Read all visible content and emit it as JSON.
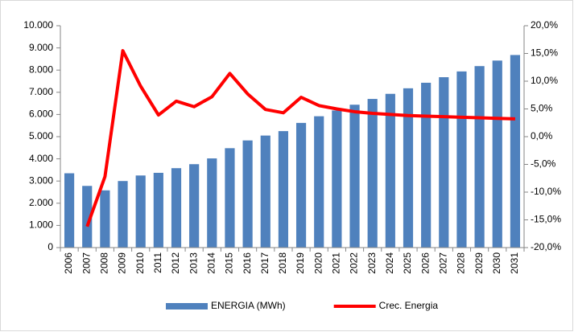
{
  "chart_data": {
    "type": "bar_line",
    "categories": [
      "2006",
      "2007",
      "2008",
      "2009",
      "2010",
      "2011",
      "2012",
      "2013",
      "2014",
      "2015",
      "2016",
      "2017",
      "2018",
      "2019",
      "2020",
      "2021",
      "2022",
      "2023",
      "2024",
      "2025",
      "2026",
      "2027",
      "2028",
      "2029",
      "2030",
      "2031"
    ],
    "series": [
      {
        "name": "ENERGIA (MWh)",
        "color": "#4f81bd",
        "type": "bar",
        "values": [
          3350,
          2780,
          2580,
          3000,
          3250,
          3370,
          3580,
          3760,
          4020,
          4480,
          4830,
          5050,
          5250,
          5620,
          5920,
          6180,
          6440,
          6700,
          6930,
          7180,
          7430,
          7680,
          7940,
          8180,
          8430,
          8680
        ]
      },
      {
        "name": "Crec. Energia",
        "color": "#ff0000",
        "type": "line",
        "axis": "y2",
        "values": [
          null,
          -16.2,
          -7.2,
          15.5,
          9.1,
          3.9,
          6.4,
          5.4,
          7.2,
          11.4,
          7.7,
          4.9,
          4.3,
          7.1,
          5.6,
          5.0,
          4.5,
          4.2,
          4.0,
          3.8,
          3.7,
          3.6,
          3.5,
          3.4,
          3.3,
          3.2
        ]
      }
    ],
    "ylim": [
      0,
      10000
    ],
    "yticks": [
      0,
      {
        "value": 1000,
        "label": "1.000"
      },
      {
        "value": 2000,
        "label": "2.000"
      },
      {
        "value": 3000,
        "label": "3.000"
      },
      {
        "value": 4000,
        "label": "4.000"
      },
      {
        "value": 5000,
        "label": "5.000"
      },
      {
        "value": 6000,
        "label": "6.000"
      },
      {
        "value": 7000,
        "label": "7.000"
      },
      {
        "value": 8000,
        "label": "8.000"
      },
      {
        "value": 9000,
        "label": "9.000"
      },
      {
        "value": 10000,
        "label": "10.000"
      }
    ],
    "y2lim": [
      -20,
      20
    ],
    "y2ticks": [
      {
        "value": -20,
        "label": "-20,0%"
      },
      {
        "value": -15,
        "label": "-15,0%"
      },
      {
        "value": -10,
        "label": "-10,0%"
      },
      {
        "value": -5,
        "label": "-5,0%"
      },
      {
        "value": 0,
        "label": "0,0%"
      },
      {
        "value": 5,
        "label": "5,0%"
      },
      {
        "value": 10,
        "label": "10,0%"
      },
      {
        "value": 15,
        "label": "15,0%"
      },
      {
        "value": 20,
        "label": "20,0%"
      }
    ],
    "legend": "bottom"
  }
}
